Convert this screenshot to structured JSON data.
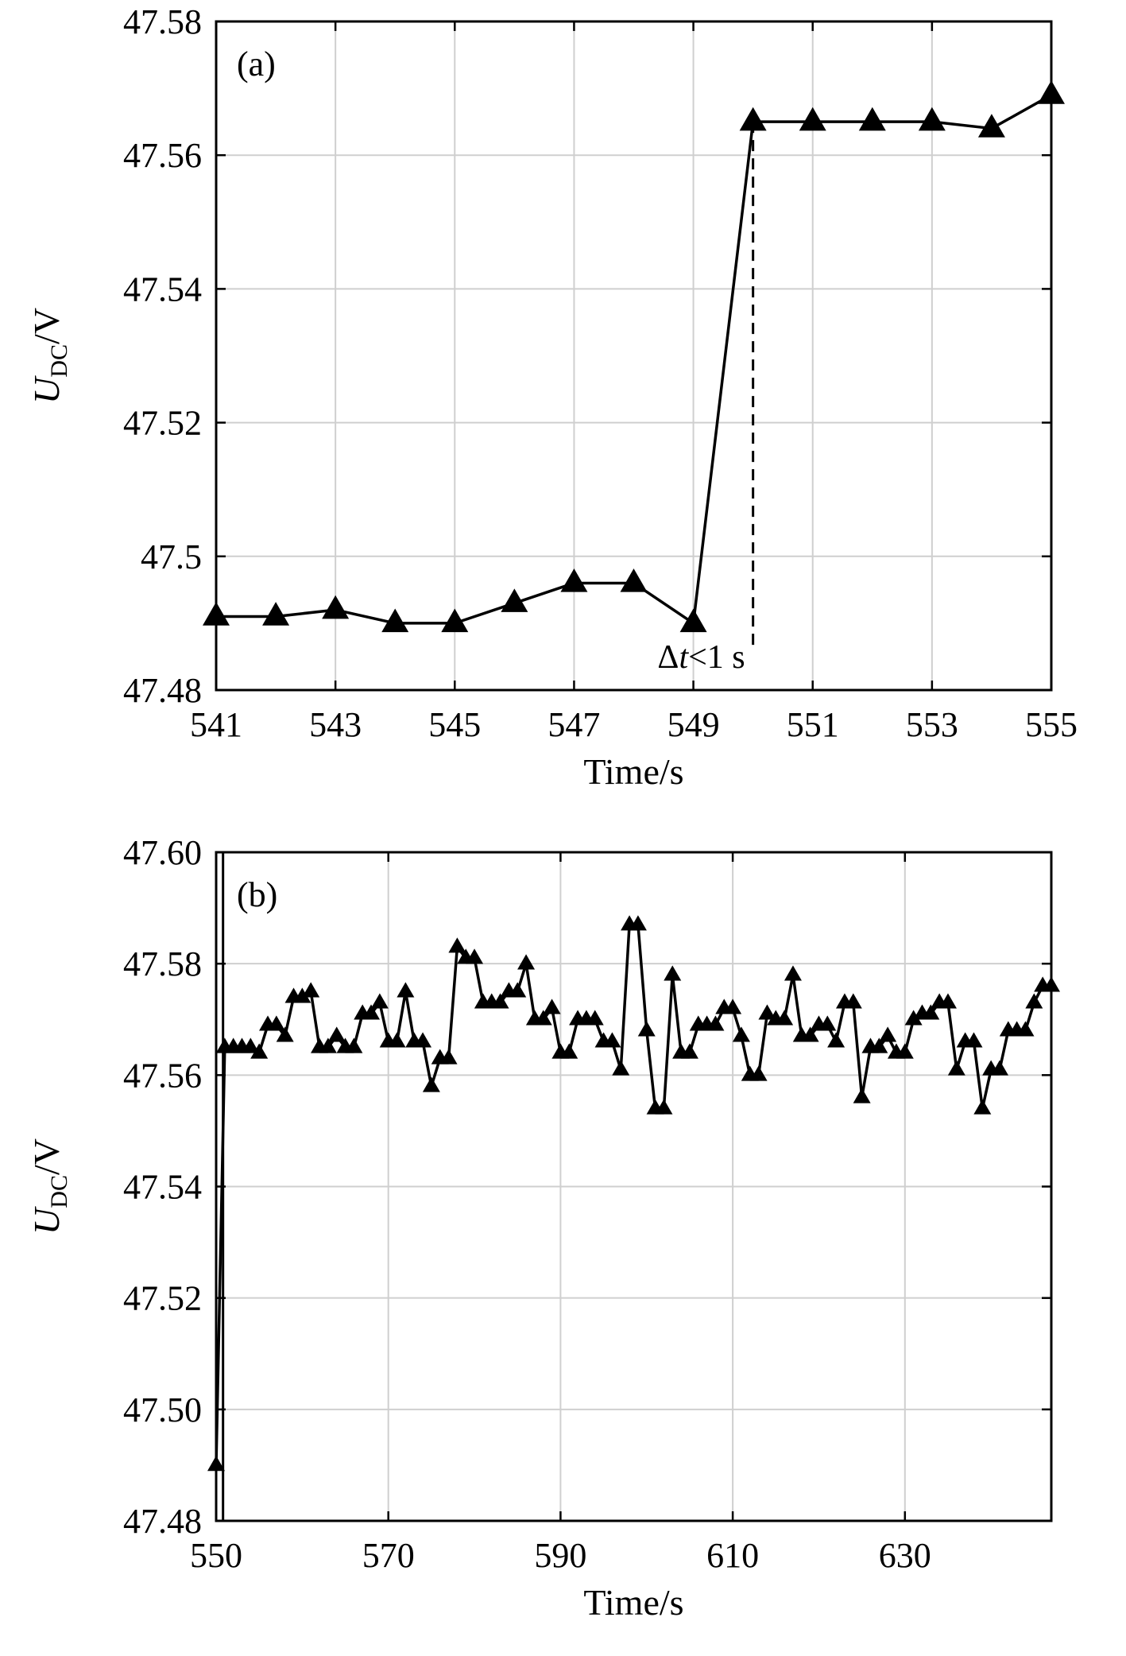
{
  "chart_data": [
    {
      "type": "line",
      "panel_label": "(a)",
      "xlabel": "Time/s",
      "ylabel": {
        "main": "U",
        "sub": "DC",
        "unit": "/V"
      },
      "xlim": [
        541,
        555
      ],
      "ylim": [
        47.48,
        47.58
      ],
      "xticks": [
        "541",
        "543",
        "545",
        "547",
        "549",
        "551",
        "553",
        "555"
      ],
      "xtick_values": [
        541,
        543,
        545,
        547,
        549,
        551,
        553,
        555
      ],
      "yticks": [
        "47.48",
        "47.5",
        "47.52",
        "47.54",
        "47.56",
        "47.58"
      ],
      "ytick_values": [
        47.48,
        47.5,
        47.52,
        47.54,
        47.56,
        47.58
      ],
      "grid": true,
      "marker": "triangle",
      "color": "#000000",
      "series": [
        {
          "x": [
            541,
            542,
            543,
            544,
            545,
            546,
            547,
            548,
            549,
            550,
            551,
            552,
            553,
            554,
            555
          ],
          "y": [
            47.491,
            47.491,
            47.492,
            47.49,
            47.49,
            47.493,
            47.496,
            47.496,
            47.49,
            47.565,
            47.565,
            47.565,
            47.565,
            47.564,
            47.569
          ]
        }
      ],
      "annotation": {
        "text_pre": "Δ",
        "text_italic": "t",
        "text_post": "<1 s",
        "x": 550,
        "y_from": 47.486,
        "y_to": 47.565
      }
    },
    {
      "type": "line",
      "panel_label": "(b)",
      "xlabel": "Time/s",
      "ylabel": {
        "main": "U",
        "sub": "DC",
        "unit": "/V"
      },
      "xlim": [
        550,
        647
      ],
      "ylim": [
        47.48,
        47.6
      ],
      "xticks": [
        "550",
        "570",
        "590",
        "610",
        "630"
      ],
      "xtick_values": [
        550,
        570,
        590,
        610,
        630
      ],
      "yticks": [
        "47.48",
        "47.50",
        "47.52",
        "47.54",
        "47.56",
        "47.58",
        "47.60"
      ],
      "ytick_values": [
        47.48,
        47.5,
        47.52,
        47.54,
        47.56,
        47.58,
        47.6
      ],
      "grid": true,
      "marker": "triangle",
      "color": "#000000",
      "series": [
        {
          "x": [
            550,
            551,
            552,
            553,
            554,
            555,
            556,
            557,
            558,
            559,
            560,
            561,
            562,
            563,
            564,
            565,
            566,
            567,
            568,
            569,
            570,
            571,
            572,
            573,
            574,
            575,
            576,
            577,
            578,
            579,
            580,
            581,
            582,
            583,
            584,
            585,
            586,
            587,
            588,
            589,
            590,
            591,
            592,
            593,
            594,
            595,
            596,
            597,
            598,
            599,
            600,
            601,
            602,
            603,
            604,
            605,
            606,
            607,
            608,
            609,
            610,
            611,
            612,
            613,
            614,
            615,
            616,
            617,
            618,
            619,
            620,
            621,
            622,
            623,
            624,
            625,
            626,
            627,
            628,
            629,
            630,
            631,
            632,
            633,
            634,
            635,
            636,
            637,
            638,
            639,
            640,
            641,
            642,
            643,
            644,
            645,
            646,
            647
          ],
          "y": [
            47.49,
            47.565,
            47.565,
            47.565,
            47.565,
            47.564,
            47.569,
            47.569,
            47.567,
            47.574,
            47.574,
            47.575,
            47.565,
            47.565,
            47.567,
            47.565,
            47.565,
            47.571,
            47.571,
            47.573,
            47.566,
            47.566,
            47.575,
            47.566,
            47.566,
            47.558,
            47.563,
            47.563,
            47.583,
            47.581,
            47.581,
            47.573,
            47.573,
            47.573,
            47.575,
            47.575,
            47.58,
            47.57,
            47.57,
            47.572,
            47.564,
            47.564,
            47.57,
            47.57,
            47.57,
            47.566,
            47.566,
            47.561,
            47.587,
            47.587,
            47.568,
            47.554,
            47.554,
            47.578,
            47.564,
            47.564,
            47.569,
            47.569,
            47.569,
            47.572,
            47.572,
            47.567,
            47.56,
            47.56,
            47.571,
            47.57,
            47.57,
            47.578,
            47.567,
            47.567,
            47.569,
            47.569,
            47.566,
            47.573,
            47.573,
            47.556,
            47.565,
            47.565,
            47.567,
            47.564,
            47.564,
            47.57,
            47.571,
            47.571,
            47.573,
            47.573,
            47.561,
            47.566,
            47.566,
            47.554,
            47.561,
            47.561,
            47.568,
            47.568,
            47.568,
            47.573,
            47.576,
            47.576
          ]
        }
      ],
      "extra_vertical_line": {
        "x": 550.8
      }
    }
  ]
}
